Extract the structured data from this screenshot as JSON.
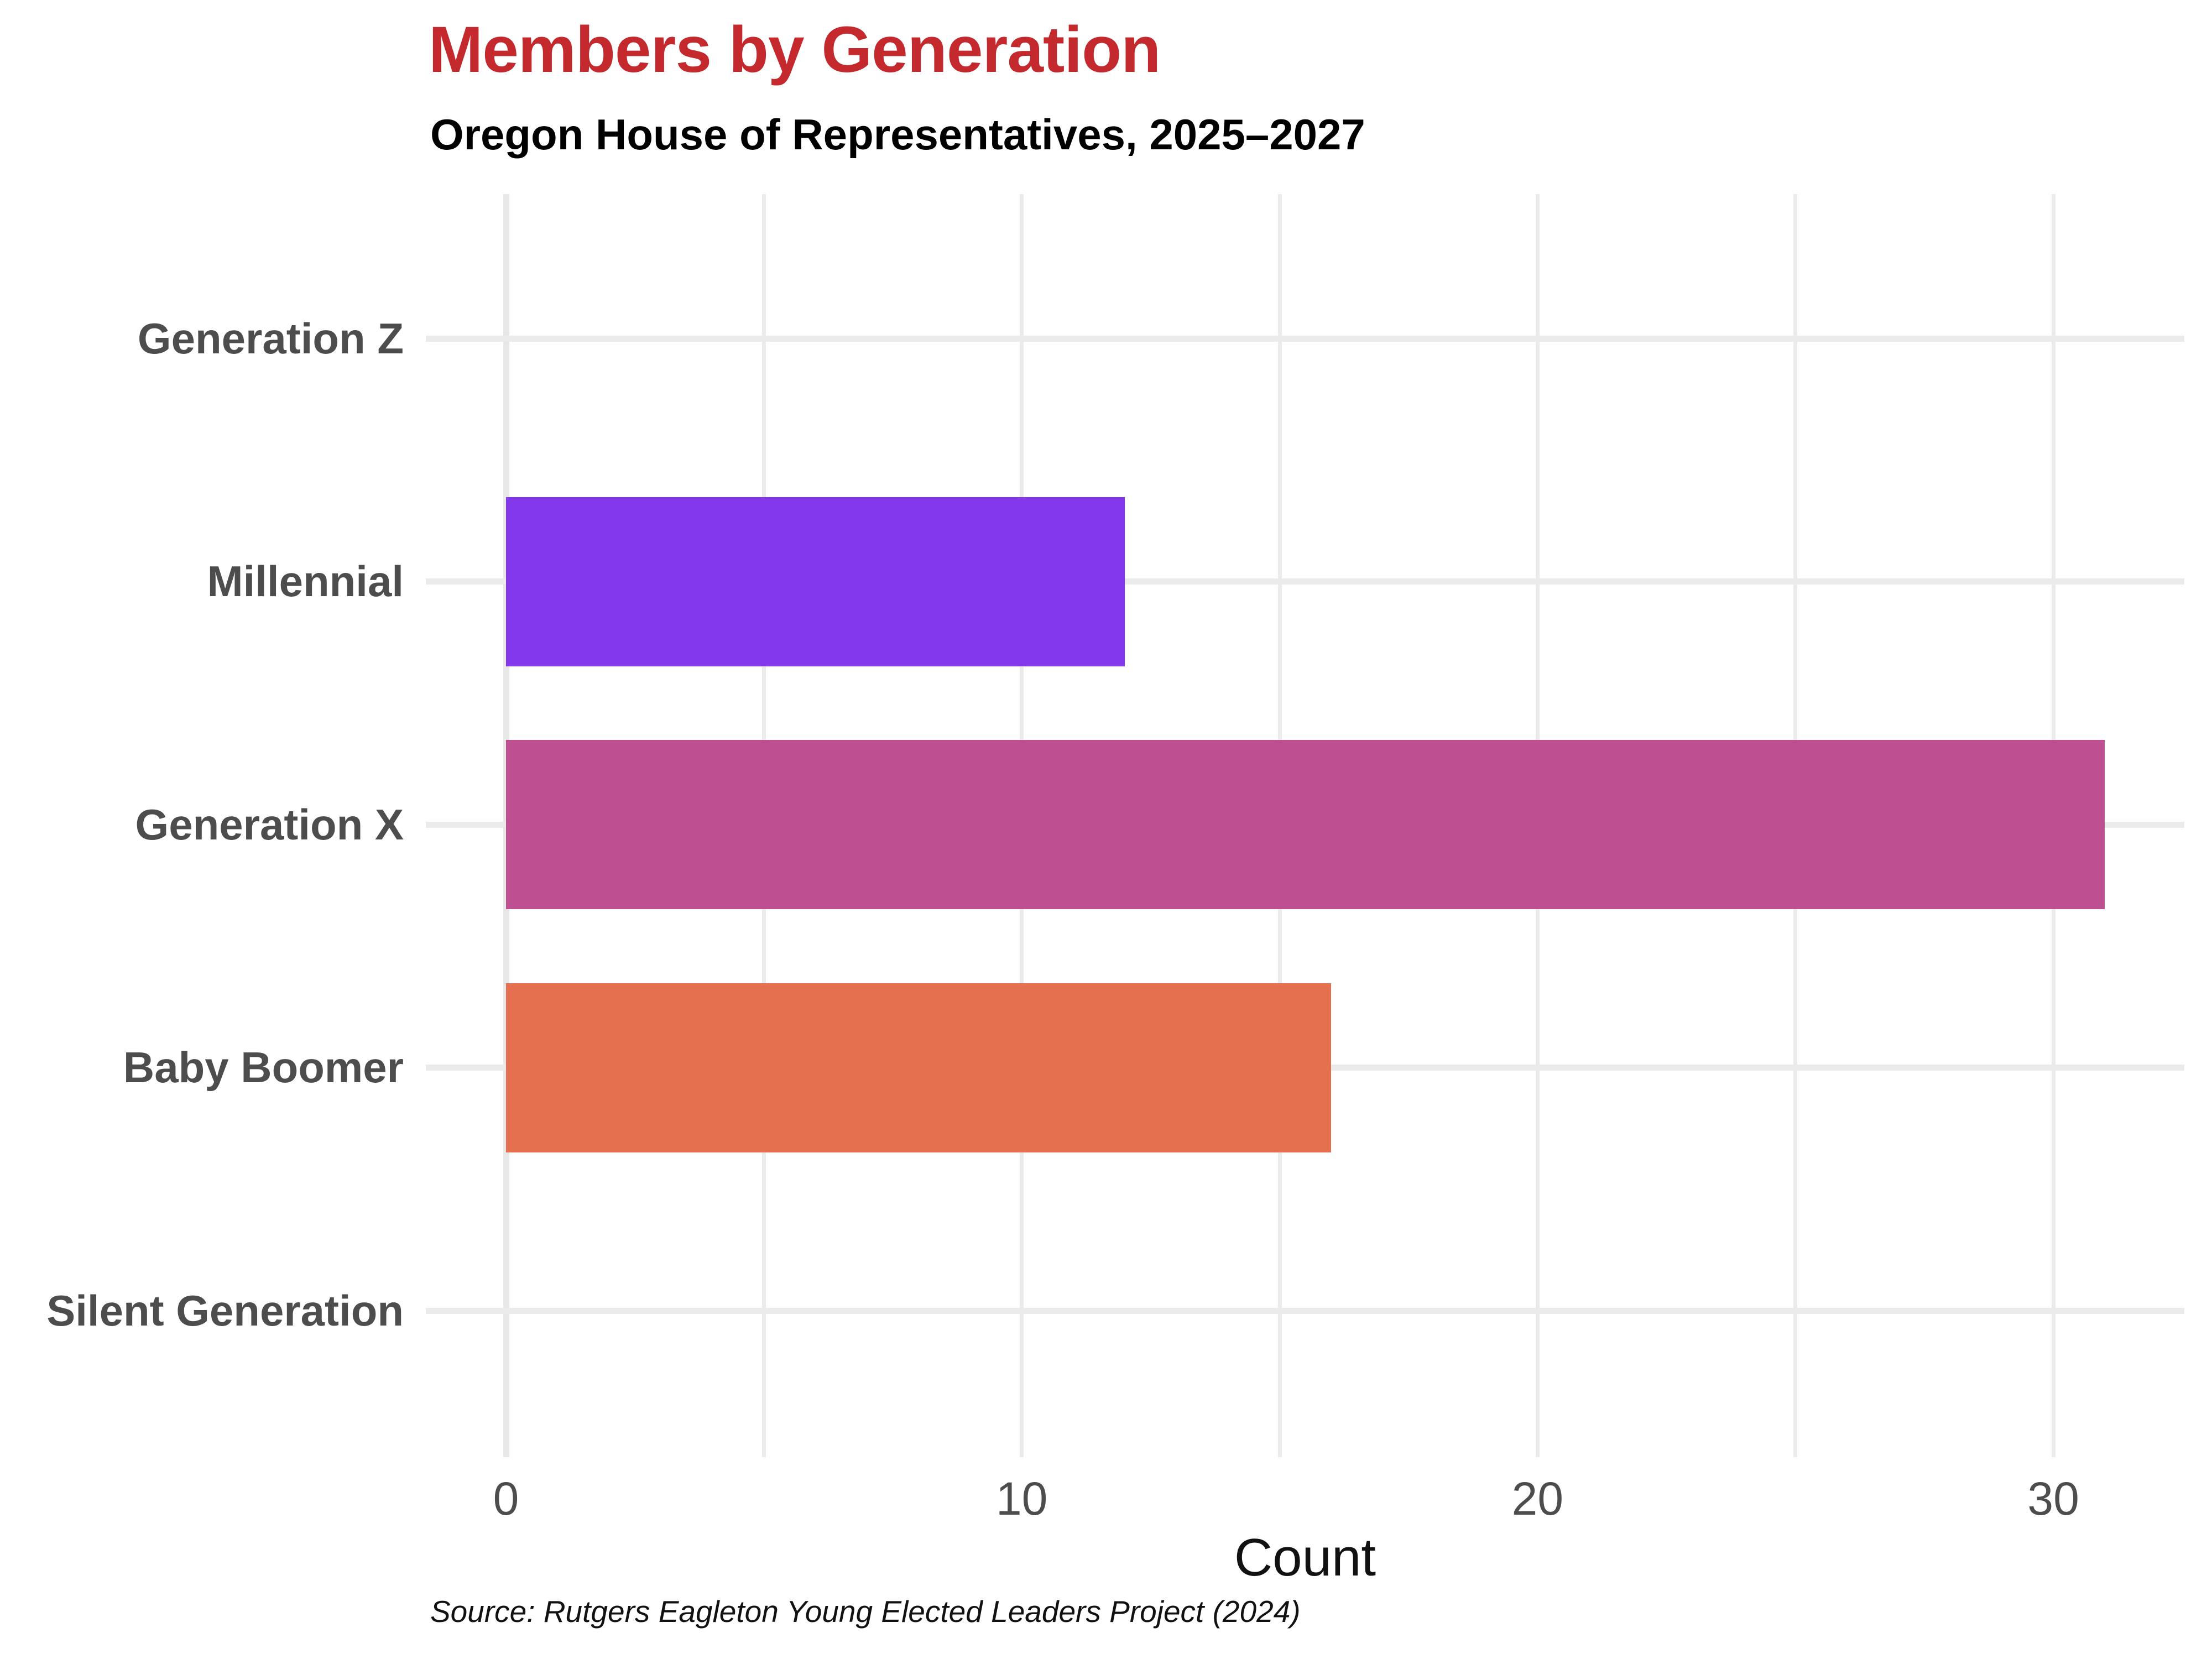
{
  "title": "Members by Generation",
  "subtitle": "Oregon House of Representatives, 2025–2027",
  "source_note": "Source: Rutgers Eagleton Young Elected Leaders Project (2024)",
  "colors": {
    "title": "#c4292e",
    "subtitle": "#000000",
    "category_label": "#4d4d4d",
    "tick_label": "#4d4d4d",
    "axis_title": "#111111",
    "source_note": "#111111",
    "gridline": "#ebebeb",
    "zero_line": "#e7e7e7",
    "background": "#ffffff"
  },
  "chart_data": {
    "type": "bar",
    "orientation": "horizontal",
    "title": "Members by Generation",
    "subtitle": "Oregon House of Representatives, 2025–2027",
    "categories": [
      "Generation Z",
      "Millennial",
      "Generation X",
      "Baby Boomer",
      "Silent Generation"
    ],
    "values": [
      0,
      12,
      31,
      16,
      0
    ],
    "bar_colors": [
      null,
      "#8338ec",
      "#be4f90",
      "#e57050",
      null
    ],
    "xlabel": "Count",
    "ylabel": "",
    "xlim": [
      0,
      32.5
    ],
    "xticks_major": [
      0,
      10,
      20,
      30
    ],
    "xticks_minor": [
      5,
      15,
      25
    ],
    "tick_labels": [
      "0",
      "10",
      "20",
      "30"
    ],
    "grid": true,
    "legend": false,
    "source": "Source: Rutgers Eagleton Young Elected Leaders Project (2024)"
  }
}
